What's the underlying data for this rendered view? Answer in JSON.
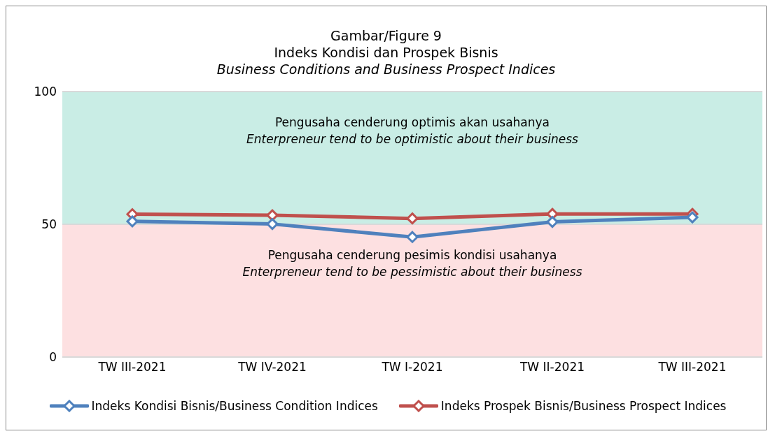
{
  "chart_data": {
    "type": "line",
    "title": "Gambar/Figure 9\nIndeks Kondisi dan Prospek Bisnis",
    "subtitle": "Business Conditions and Business Prospect Indices",
    "categories": [
      "TW III-2021",
      "TW IV-2021",
      "TW I-2021",
      "TW II-2021",
      "TW III-2021"
    ],
    "series": [
      {
        "name": "Indeks Kondisi Bisnis/Business Condition Indices",
        "color": "#4f81bd",
        "values": [
          51.1,
          50.1,
          45.2,
          50.9,
          52.6
        ]
      },
      {
        "name": "Indeks Prospek Bisnis/Business Prospect Indices",
        "color": "#c0504d",
        "values": [
          53.8,
          53.4,
          52.2,
          53.9,
          53.9
        ]
      }
    ],
    "ylim": [
      0,
      100
    ],
    "yticks": [
      0,
      50,
      100
    ],
    "grid": "y",
    "legend": "bottom",
    "marker": "diamond",
    "line_style": "solid",
    "bands": [
      {
        "axis": "y",
        "from": 50,
        "to": 100,
        "label": "Pengusaha cenderung optimis akan usahanya\nEnterpreneur tend to be optimistic about their business",
        "color": "#c9ede5"
      },
      {
        "axis": "y",
        "from": 0,
        "to": 50,
        "label": "Pengusaha cenderung pesimis kondisi usahanya\nEnterpreneur tend to be pessimistic about their business",
        "color": "#fde0e1"
      }
    ]
  }
}
